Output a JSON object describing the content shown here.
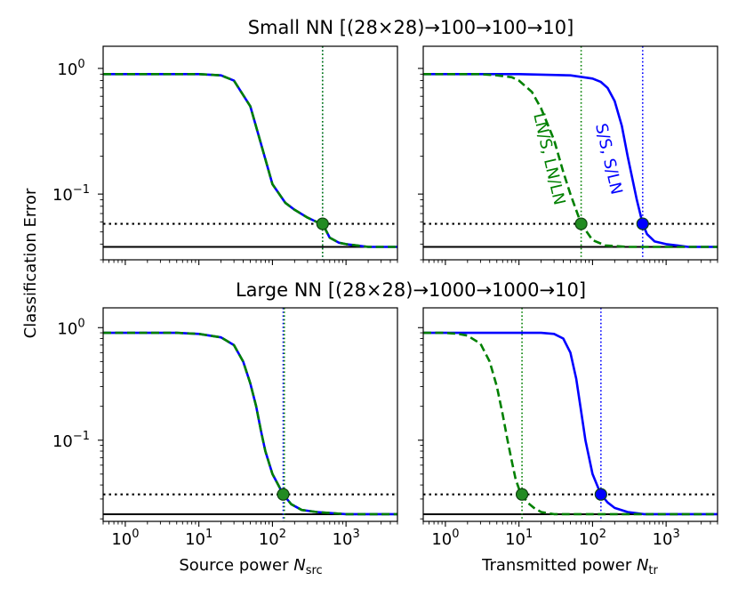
{
  "figure": {
    "ylabel": "Classification Error",
    "row_titles": [
      "Small NN [(28×28)→100→100→10]",
      "Large NN [(28×28)→1000→1000→10]"
    ],
    "xlabels": [
      {
        "main": "Source power ",
        "var": "N",
        "sub": "src"
      },
      {
        "main": "Transmitted power ",
        "var": "N",
        "sub": "tr"
      }
    ],
    "annotations": {
      "green": "LN/S, LN/LN",
      "blue": "S/S, S/LN"
    },
    "colors": {
      "blue": "#0000ff",
      "green": "#008000",
      "marker_green": "#228b22",
      "black": "#000000"
    }
  },
  "chart_data": [
    {
      "type": "line",
      "panel": "small-source",
      "title": "Small NN [(28×28)→100→100→10]",
      "xscale": "log",
      "yscale": "log",
      "xlim": [
        0.5,
        5000
      ],
      "ylim": [
        0.03,
        1.5
      ],
      "xticks": [
        {
          "v": 1,
          "e": "0"
        },
        {
          "v": 10,
          "e": "1"
        },
        {
          "v": 100,
          "e": "2"
        },
        {
          "v": 1000,
          "e": "3"
        }
      ],
      "yticks": [
        {
          "v": 1,
          "e": "0"
        },
        {
          "v": 0.1,
          "e": "-1"
        }
      ],
      "baseline": 0.038,
      "threshold": 0.058,
      "series": [
        {
          "name": "S/S, S/LN",
          "color": "blue",
          "style": "solid",
          "x": [
            0.5,
            1,
            3,
            10,
            20,
            30,
            50,
            70,
            100,
            150,
            200,
            300,
            400,
            480,
            600,
            800,
            1000,
            2000,
            5000
          ],
          "y": [
            0.9,
            0.9,
            0.9,
            0.9,
            0.88,
            0.8,
            0.5,
            0.25,
            0.12,
            0.085,
            0.075,
            0.065,
            0.06,
            0.058,
            0.045,
            0.041,
            0.04,
            0.038,
            0.038
          ]
        },
        {
          "name": "LN/S, LN/LN",
          "color": "green",
          "style": "dashed",
          "x": [
            0.5,
            1,
            3,
            10,
            20,
            30,
            50,
            70,
            100,
            150,
            200,
            300,
            400,
            480,
            600,
            800,
            1000,
            2000,
            5000
          ],
          "y": [
            0.9,
            0.9,
            0.9,
            0.9,
            0.88,
            0.8,
            0.5,
            0.25,
            0.12,
            0.085,
            0.075,
            0.065,
            0.06,
            0.058,
            0.045,
            0.041,
            0.04,
            0.038,
            0.038
          ]
        }
      ],
      "markers": [
        {
          "x": 480,
          "y": 0.058,
          "color": "marker_green"
        }
      ],
      "vlines": [
        {
          "x": 480,
          "color": "blue"
        },
        {
          "x": 480,
          "color": "green"
        }
      ]
    },
    {
      "type": "line",
      "panel": "small-transmitted",
      "xscale": "log",
      "yscale": "log",
      "xlim": [
        0.5,
        5000
      ],
      "ylim": [
        0.03,
        1.5
      ],
      "xticks": [
        {
          "v": 1,
          "e": "0"
        },
        {
          "v": 10,
          "e": "1"
        },
        {
          "v": 100,
          "e": "2"
        },
        {
          "v": 1000,
          "e": "3"
        }
      ],
      "yticks": [
        {
          "v": 1,
          "e": "0"
        },
        {
          "v": 0.1,
          "e": "-1"
        }
      ],
      "baseline": 0.038,
      "threshold": 0.058,
      "series": [
        {
          "name": "S/S, S/LN",
          "color": "blue",
          "style": "solid",
          "x": [
            0.5,
            10,
            50,
            100,
            130,
            160,
            200,
            250,
            300,
            400,
            480,
            550,
            700,
            1000,
            2000,
            5000
          ],
          "y": [
            0.9,
            0.9,
            0.88,
            0.83,
            0.78,
            0.7,
            0.55,
            0.35,
            0.2,
            0.09,
            0.058,
            0.048,
            0.042,
            0.04,
            0.038,
            0.038
          ]
        },
        {
          "name": "LN/S, LN/LN",
          "color": "green",
          "style": "dashed",
          "x": [
            0.5,
            1,
            3,
            5,
            8,
            10,
            15,
            20,
            30,
            40,
            50,
            70,
            100,
            150,
            300,
            1000,
            5000
          ],
          "y": [
            0.9,
            0.9,
            0.9,
            0.88,
            0.85,
            0.8,
            0.65,
            0.48,
            0.27,
            0.15,
            0.1,
            0.058,
            0.043,
            0.039,
            0.038,
            0.038,
            0.038
          ]
        }
      ],
      "markers": [
        {
          "x": 70,
          "y": 0.058,
          "color": "marker_green"
        },
        {
          "x": 480,
          "y": 0.058,
          "color": "blue"
        }
      ],
      "vlines": [
        {
          "x": 70,
          "color": "green"
        },
        {
          "x": 480,
          "color": "blue"
        }
      ]
    },
    {
      "type": "line",
      "panel": "large-source",
      "title": "Large NN [(28×28)→1000→1000→10]",
      "xscale": "log",
      "yscale": "log",
      "xlim": [
        0.5,
        5000
      ],
      "ylim": [
        0.019,
        1.5
      ],
      "xticks": [
        {
          "v": 1,
          "e": "0"
        },
        {
          "v": 10,
          "e": "1"
        },
        {
          "v": 100,
          "e": "2"
        },
        {
          "v": 1000,
          "e": "3"
        }
      ],
      "yticks": [
        {
          "v": 1,
          "e": "0"
        },
        {
          "v": 0.1,
          "e": "-1"
        }
      ],
      "baseline": 0.022,
      "threshold": 0.033,
      "series": [
        {
          "name": "S/S, S/LN",
          "color": "blue",
          "style": "solid",
          "x": [
            0.5,
            1,
            5,
            10,
            20,
            30,
            40,
            50,
            60,
            70,
            80,
            100,
            120,
            140,
            180,
            250,
            400,
            1000,
            5000
          ],
          "y": [
            0.9,
            0.9,
            0.9,
            0.88,
            0.82,
            0.7,
            0.5,
            0.32,
            0.2,
            0.12,
            0.08,
            0.05,
            0.04,
            0.033,
            0.027,
            0.024,
            0.023,
            0.022,
            0.022
          ]
        },
        {
          "name": "LN/S, LN/LN",
          "color": "green",
          "style": "dashed",
          "x": [
            0.5,
            1,
            5,
            10,
            20,
            30,
            40,
            50,
            60,
            70,
            80,
            100,
            120,
            140,
            180,
            250,
            400,
            1000,
            5000
          ],
          "y": [
            0.9,
            0.9,
            0.9,
            0.88,
            0.82,
            0.7,
            0.5,
            0.32,
            0.2,
            0.12,
            0.08,
            0.05,
            0.04,
            0.033,
            0.027,
            0.024,
            0.023,
            0.022,
            0.022
          ]
        }
      ],
      "markers": [
        {
          "x": 140,
          "y": 0.033,
          "color": "marker_green"
        }
      ],
      "vlines": [
        {
          "x": 140,
          "color": "blue"
        },
        {
          "x": 145,
          "color": "green"
        }
      ]
    },
    {
      "type": "line",
      "panel": "large-transmitted",
      "xscale": "log",
      "yscale": "log",
      "xlim": [
        0.5,
        5000
      ],
      "ylim": [
        0.019,
        1.5
      ],
      "xticks": [
        {
          "v": 1,
          "e": "0"
        },
        {
          "v": 10,
          "e": "1"
        },
        {
          "v": 100,
          "e": "2"
        },
        {
          "v": 1000,
          "e": "3"
        }
      ],
      "yticks": [
        {
          "v": 1,
          "e": "0"
        },
        {
          "v": 0.1,
          "e": "-1"
        }
      ],
      "baseline": 0.022,
      "threshold": 0.033,
      "series": [
        {
          "name": "S/S, S/LN",
          "color": "blue",
          "style": "solid",
          "x": [
            0.5,
            5,
            20,
            30,
            40,
            50,
            60,
            70,
            80,
            100,
            130,
            160,
            200,
            300,
            500,
            1000,
            5000
          ],
          "y": [
            0.9,
            0.9,
            0.9,
            0.88,
            0.8,
            0.6,
            0.35,
            0.18,
            0.1,
            0.05,
            0.033,
            0.028,
            0.025,
            0.023,
            0.022,
            0.022,
            0.022
          ]
        },
        {
          "name": "LN/S, LN/LN",
          "color": "green",
          "style": "dashed",
          "x": [
            0.5,
            1,
            1.5,
            2,
            3,
            4,
            5,
            6,
            7,
            8,
            9,
            10,
            11,
            13,
            16,
            20,
            30,
            50,
            100,
            5000
          ],
          "y": [
            0.9,
            0.9,
            0.88,
            0.85,
            0.72,
            0.5,
            0.3,
            0.17,
            0.1,
            0.065,
            0.045,
            0.037,
            0.033,
            0.028,
            0.025,
            0.023,
            0.022,
            0.022,
            0.022,
            0.022
          ]
        }
      ],
      "markers": [
        {
          "x": 11,
          "y": 0.033,
          "color": "marker_green"
        },
        {
          "x": 130,
          "y": 0.033,
          "color": "blue"
        }
      ],
      "vlines": [
        {
          "x": 11,
          "color": "green"
        },
        {
          "x": 130,
          "color": "blue"
        }
      ]
    }
  ]
}
